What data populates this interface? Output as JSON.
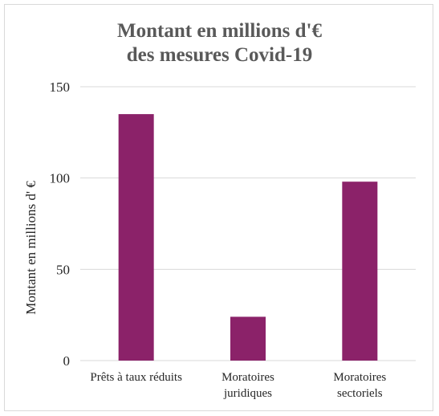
{
  "chart_data": {
    "type": "bar",
    "title_lines": [
      "Montant en millions d'€",
      "des mesures Covid-19"
    ],
    "xlabel": "",
    "ylabel": "Montant en millions d' €",
    "categories": [
      [
        "Prêts à taux réduits"
      ],
      [
        "Moratoires",
        "juridiques"
      ],
      [
        "Moratoires",
        "sectoriels"
      ]
    ],
    "values": [
      135,
      24,
      98
    ],
    "ylim": [
      0,
      150
    ],
    "yticks": [
      0,
      50,
      100,
      150
    ],
    "grid": true,
    "legend": "none",
    "bar_color": "#8B2269",
    "grid_color": "#d9d9d9"
  }
}
